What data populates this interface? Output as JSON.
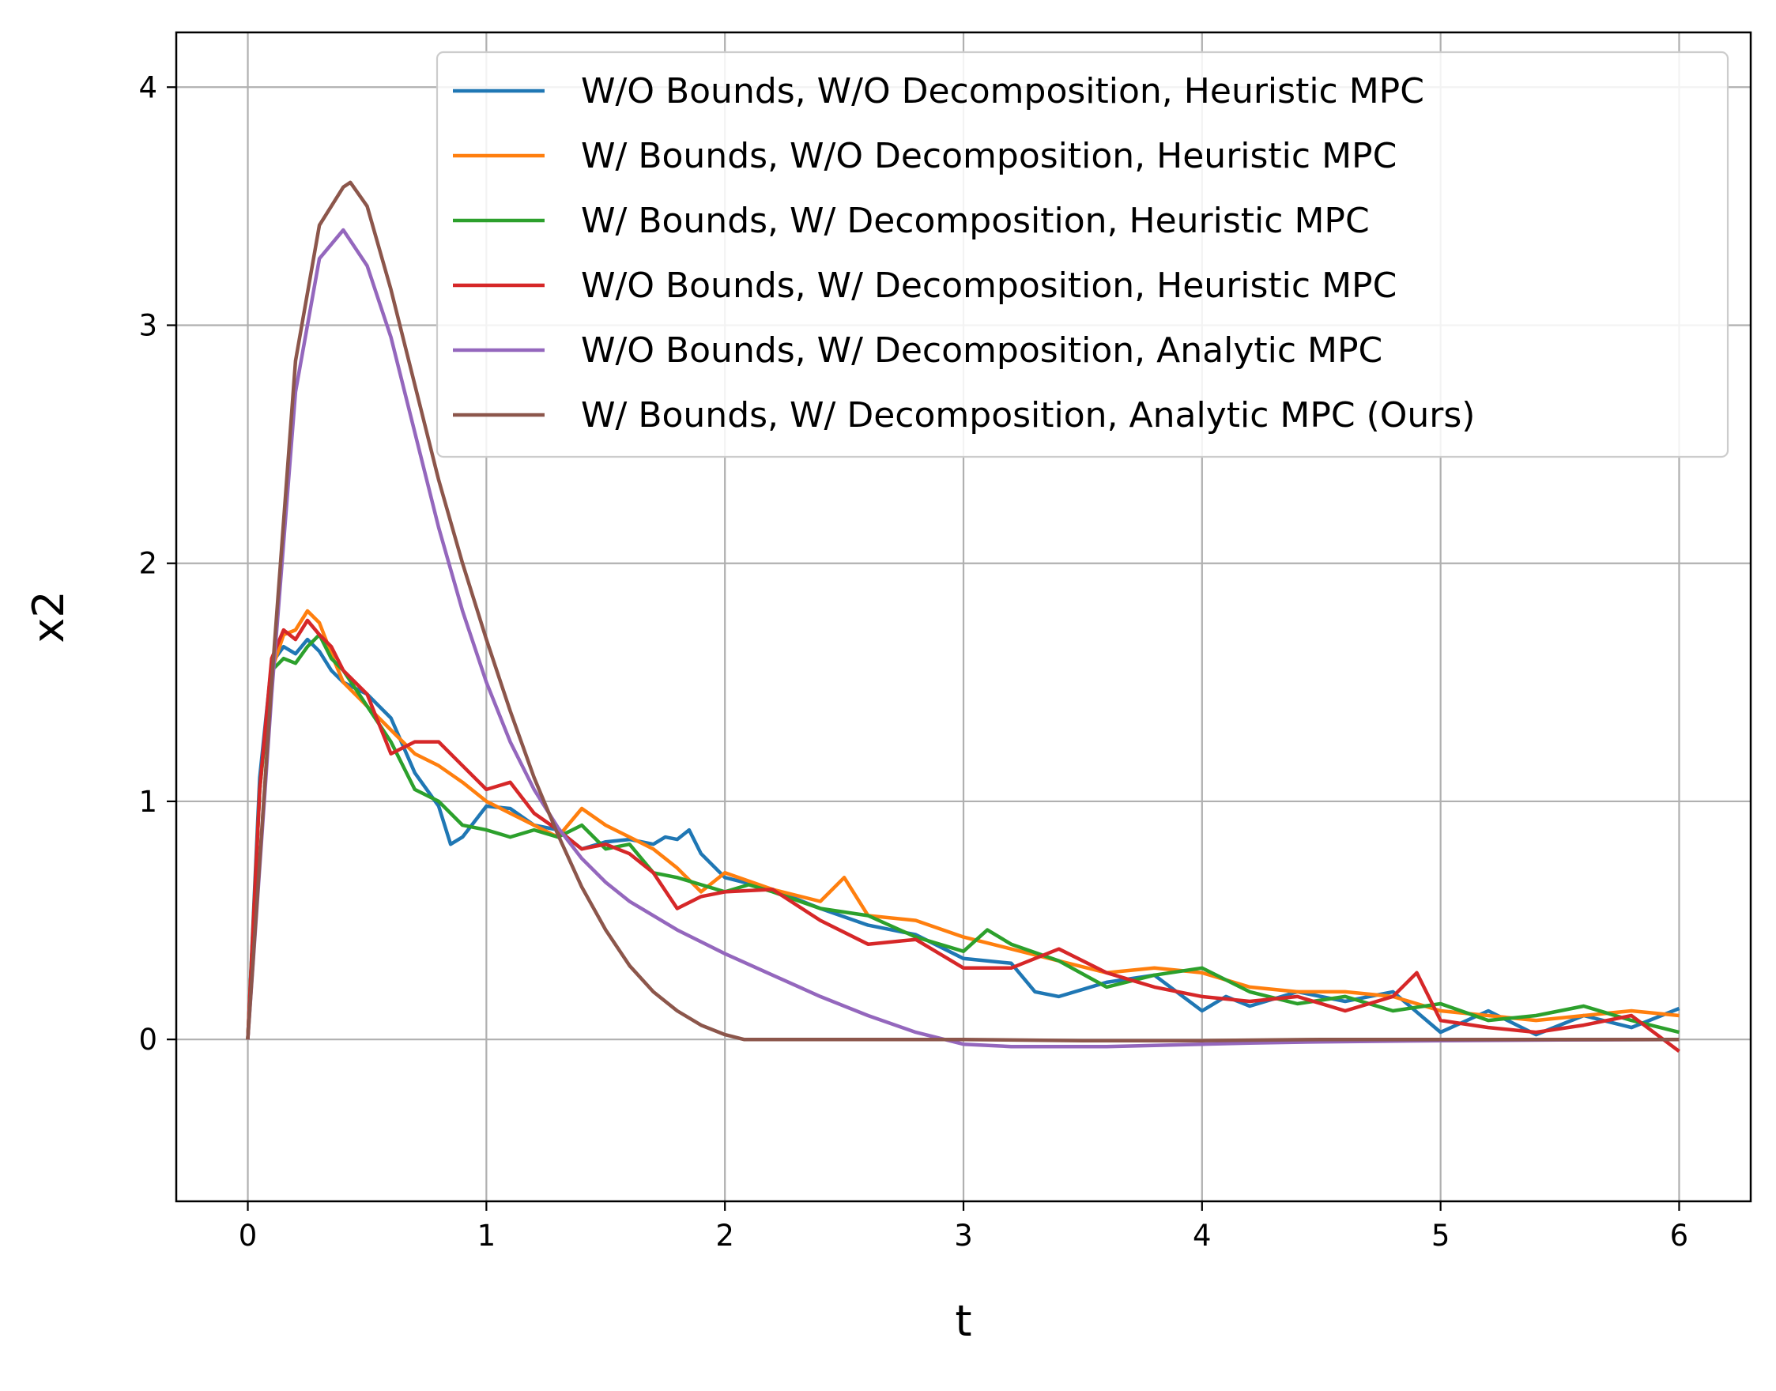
{
  "chart_data": {
    "type": "line",
    "title": "",
    "xlabel": "t",
    "ylabel": "x2",
    "xlim": [
      -0.3,
      6.3
    ],
    "ylim": [
      -0.68,
      4.23
    ],
    "xticks": [
      0,
      1,
      2,
      3,
      4,
      5,
      6
    ],
    "yticks": [
      0,
      1,
      2,
      3,
      4
    ],
    "grid": true,
    "legend_position": "upper right",
    "series": [
      {
        "name": "W/O Bounds, W/O Decomposition, Heuristic MPC",
        "color": "#1f77b4",
        "x": [
          0,
          0.05,
          0.1,
          0.15,
          0.2,
          0.25,
          0.3,
          0.35,
          0.4,
          0.5,
          0.6,
          0.7,
          0.8,
          0.85,
          0.9,
          1.0,
          1.1,
          1.2,
          1.3,
          1.4,
          1.5,
          1.6,
          1.7,
          1.75,
          1.8,
          1.85,
          1.9,
          2.0,
          2.2,
          2.4,
          2.6,
          2.8,
          3.0,
          3.2,
          3.3,
          3.4,
          3.6,
          3.8,
          4.0,
          4.1,
          4.2,
          4.4,
          4.6,
          4.8,
          5.0,
          5.2,
          5.4,
          5.6,
          5.8,
          6.0
        ],
        "y": [
          0,
          1.1,
          1.58,
          1.65,
          1.62,
          1.68,
          1.63,
          1.55,
          1.5,
          1.45,
          1.35,
          1.12,
          0.98,
          0.82,
          0.85,
          0.98,
          0.97,
          0.9,
          0.88,
          0.8,
          0.83,
          0.84,
          0.82,
          0.85,
          0.84,
          0.88,
          0.78,
          0.68,
          0.63,
          0.55,
          0.48,
          0.44,
          0.34,
          0.32,
          0.2,
          0.18,
          0.24,
          0.27,
          0.12,
          0.18,
          0.14,
          0.2,
          0.16,
          0.2,
          0.03,
          0.12,
          0.02,
          0.1,
          0.05,
          0.13
        ]
      },
      {
        "name": "W/ Bounds, W/O Decomposition, Heuristic MPC",
        "color": "#ff7f0e",
        "x": [
          0,
          0.05,
          0.1,
          0.15,
          0.2,
          0.25,
          0.3,
          0.35,
          0.4,
          0.5,
          0.6,
          0.7,
          0.8,
          0.9,
          1.0,
          1.1,
          1.2,
          1.3,
          1.4,
          1.5,
          1.6,
          1.7,
          1.8,
          1.9,
          2.0,
          2.2,
          2.4,
          2.5,
          2.6,
          2.8,
          3.0,
          3.2,
          3.4,
          3.6,
          3.8,
          4.0,
          4.2,
          4.4,
          4.6,
          4.8,
          5.0,
          5.2,
          5.4,
          5.6,
          5.8,
          6.0
        ],
        "y": [
          0,
          1.05,
          1.55,
          1.7,
          1.72,
          1.8,
          1.75,
          1.62,
          1.5,
          1.4,
          1.3,
          1.2,
          1.15,
          1.08,
          1.0,
          0.95,
          0.9,
          0.85,
          0.97,
          0.9,
          0.85,
          0.8,
          0.72,
          0.62,
          0.7,
          0.63,
          0.58,
          0.68,
          0.52,
          0.5,
          0.43,
          0.38,
          0.33,
          0.28,
          0.3,
          0.28,
          0.22,
          0.2,
          0.2,
          0.18,
          0.12,
          0.1,
          0.08,
          0.1,
          0.12,
          0.1
        ]
      },
      {
        "name": "W/ Bounds, W/ Decomposition, Heuristic MPC",
        "color": "#2ca02c",
        "x": [
          0,
          0.05,
          0.1,
          0.15,
          0.2,
          0.25,
          0.3,
          0.35,
          0.4,
          0.5,
          0.6,
          0.7,
          0.8,
          0.9,
          1.0,
          1.1,
          1.2,
          1.3,
          1.4,
          1.5,
          1.6,
          1.7,
          1.8,
          1.9,
          2.0,
          2.1,
          2.2,
          2.4,
          2.6,
          2.8,
          3.0,
          3.1,
          3.2,
          3.4,
          3.6,
          3.8,
          4.0,
          4.2,
          4.4,
          4.6,
          4.8,
          5.0,
          5.2,
          5.4,
          5.6,
          5.8,
          6.0
        ],
        "y": [
          0,
          1.05,
          1.55,
          1.6,
          1.58,
          1.65,
          1.7,
          1.6,
          1.55,
          1.4,
          1.25,
          1.05,
          1.0,
          0.9,
          0.88,
          0.85,
          0.88,
          0.85,
          0.9,
          0.8,
          0.82,
          0.7,
          0.68,
          0.65,
          0.62,
          0.65,
          0.62,
          0.55,
          0.52,
          0.43,
          0.37,
          0.46,
          0.4,
          0.33,
          0.22,
          0.27,
          0.3,
          0.2,
          0.15,
          0.18,
          0.12,
          0.15,
          0.08,
          0.1,
          0.14,
          0.08,
          0.03
        ]
      },
      {
        "name": "W/O Bounds, W/ Decomposition, Heuristic MPC",
        "color": "#d62728",
        "x": [
          0,
          0.05,
          0.1,
          0.15,
          0.2,
          0.25,
          0.3,
          0.35,
          0.4,
          0.5,
          0.6,
          0.7,
          0.8,
          0.9,
          1.0,
          1.1,
          1.2,
          1.3,
          1.4,
          1.5,
          1.6,
          1.7,
          1.8,
          1.9,
          2.0,
          2.2,
          2.4,
          2.6,
          2.8,
          3.0,
          3.2,
          3.4,
          3.6,
          3.8,
          4.0,
          4.2,
          4.4,
          4.6,
          4.8,
          4.9,
          5.0,
          5.2,
          5.4,
          5.6,
          5.8,
          6.0
        ],
        "y": [
          0,
          1.05,
          1.6,
          1.72,
          1.68,
          1.76,
          1.7,
          1.65,
          1.55,
          1.45,
          1.2,
          1.25,
          1.25,
          1.15,
          1.05,
          1.08,
          0.95,
          0.88,
          0.8,
          0.82,
          0.78,
          0.7,
          0.55,
          0.6,
          0.62,
          0.63,
          0.5,
          0.4,
          0.42,
          0.3,
          0.3,
          0.38,
          0.28,
          0.22,
          0.18,
          0.16,
          0.18,
          0.12,
          0.18,
          0.28,
          0.08,
          0.05,
          0.03,
          0.06,
          0.1,
          -0.05
        ]
      },
      {
        "name": "W/O Bounds, W/ Decomposition, Analytic MPC",
        "color": "#9467bd",
        "x": [
          0,
          0.1,
          0.2,
          0.3,
          0.4,
          0.5,
          0.6,
          0.7,
          0.8,
          0.9,
          1.0,
          1.1,
          1.2,
          1.3,
          1.4,
          1.5,
          1.6,
          1.8,
          2.0,
          2.2,
          2.4,
          2.6,
          2.8,
          3.0,
          3.2,
          3.4,
          3.6,
          3.8,
          4.0,
          4.2,
          4.5,
          5.0,
          5.5,
          6.0
        ],
        "y": [
          0,
          1.45,
          2.72,
          3.28,
          3.4,
          3.25,
          2.95,
          2.55,
          2.15,
          1.8,
          1.5,
          1.25,
          1.05,
          0.89,
          0.76,
          0.66,
          0.58,
          0.46,
          0.36,
          0.27,
          0.18,
          0.1,
          0.03,
          -0.02,
          -0.03,
          -0.03,
          -0.03,
          -0.025,
          -0.02,
          -0.015,
          -0.01,
          -0.005,
          -0.002,
          0
        ]
      },
      {
        "name": "W/ Bounds, W/ Decomposition, Analytic MPC (Ours)",
        "color": "#8c564b",
        "x": [
          0,
          0.1,
          0.2,
          0.3,
          0.4,
          0.43,
          0.5,
          0.6,
          0.7,
          0.8,
          0.9,
          1.0,
          1.1,
          1.2,
          1.3,
          1.4,
          1.5,
          1.6,
          1.7,
          1.8,
          1.9,
          2.0,
          2.08,
          2.2,
          2.5,
          3.0,
          3.5,
          4.0,
          4.5,
          5.0,
          5.5,
          6.0
        ],
        "y": [
          0,
          1.5,
          2.85,
          3.42,
          3.58,
          3.6,
          3.5,
          3.15,
          2.75,
          2.35,
          2.0,
          1.68,
          1.38,
          1.1,
          0.86,
          0.64,
          0.46,
          0.31,
          0.2,
          0.12,
          0.06,
          0.02,
          0,
          0,
          0,
          0,
          -0.005,
          -0.005,
          0,
          0,
          0,
          0
        ]
      }
    ]
  }
}
